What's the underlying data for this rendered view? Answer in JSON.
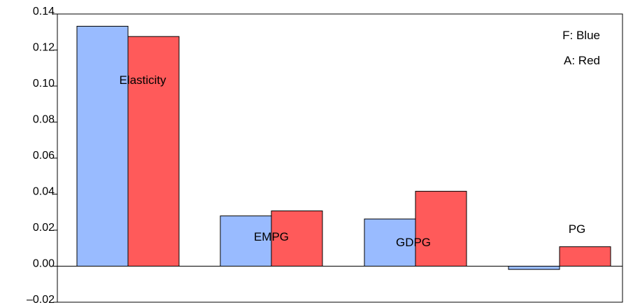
{
  "chart_data": {
    "type": "bar",
    "title": "",
    "xlabel": "",
    "ylabel": "",
    "categories": [
      "Elasticity",
      "EMPG",
      "GDPG",
      "PG"
    ],
    "series": [
      {
        "name": "F",
        "color": "#99bbff",
        "values": [
          0.1332,
          0.0279,
          0.0262,
          -0.0018
        ]
      },
      {
        "name": "A",
        "color": "#ff5a5a",
        "values": [
          0.1275,
          0.0307,
          0.0416,
          0.0108
        ]
      }
    ],
    "ylim": [
      -0.02,
      0.14
    ],
    "yticks": [
      "–0.02",
      "0.00",
      "0.02",
      "0.04",
      "0.06",
      "0.08",
      "0.10",
      "0.12",
      "0.14"
    ],
    "ytick_values": [
      -0.02,
      0.0,
      0.02,
      0.04,
      0.06,
      0.08,
      0.1,
      0.12,
      0.14
    ],
    "legend": {
      "placement": "top-right",
      "entries": [
        "F: Blue",
        "A: Red"
      ]
    },
    "grid": false
  }
}
